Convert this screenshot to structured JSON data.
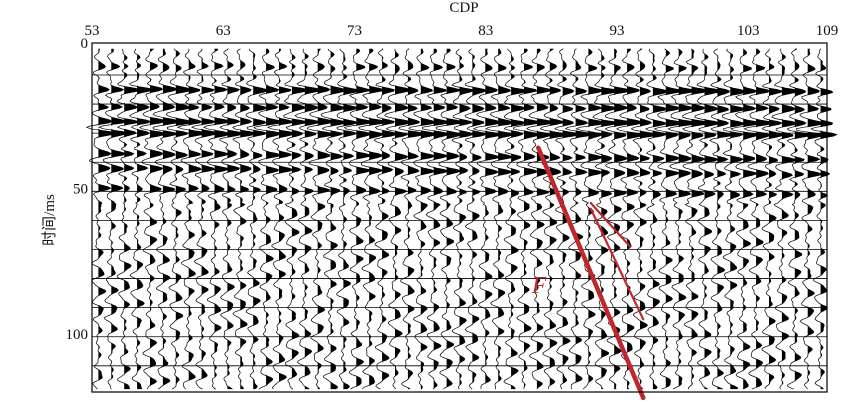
{
  "chart_data": {
    "type": "seismic-section",
    "xlabel": "CDP",
    "ylabel": "时间/ms",
    "x_ticks": [
      53,
      63,
      73,
      83,
      93,
      103,
      109
    ],
    "y_ticks": [
      0,
      50,
      100
    ],
    "xlim": [
      53,
      109
    ],
    "ylim": [
      0,
      120
    ],
    "y_inverted": true,
    "trace_count": 57,
    "time_lines_ms": [
      11,
      21,
      31,
      41,
      51,
      61,
      71,
      81,
      91,
      101,
      111
    ],
    "reflectors": [
      {
        "time_ms": 8,
        "cdp_range": [
          53,
          109
        ],
        "strength": 0.35
      },
      {
        "time_ms": 16,
        "cdp_range": [
          53,
          109
        ],
        "strength": 0.95
      },
      {
        "time_ms": 22,
        "cdp_range": [
          53,
          109
        ],
        "strength": 0.8
      },
      {
        "time_ms": 27,
        "cdp_range": [
          53,
          109
        ],
        "strength": 1.0
      },
      {
        "time_ms": 31,
        "cdp_range": [
          53,
          109
        ],
        "strength": 0.95
      },
      {
        "time_ms": 38,
        "cdp_range": [
          53,
          109
        ],
        "strength": 0.75
      },
      {
        "time_ms": 43,
        "cdp_range": [
          53,
          109
        ],
        "strength": 0.7
      },
      {
        "time_ms": 50,
        "cdp_range": [
          53,
          109
        ],
        "strength": 0.6
      }
    ],
    "faults": [
      {
        "label": "F",
        "from": {
          "cdp": 87,
          "time_ms": 36
        },
        "to": {
          "cdp": 95,
          "time_ms": 122
        },
        "label_at": {
          "cdp": 86.5,
          "time_ms": 86
        }
      },
      {
        "label": "",
        "from": {
          "cdp": 91,
          "time_ms": 55
        },
        "to": {
          "cdp": 94,
          "time_ms": 70
        }
      },
      {
        "label": "",
        "from": {
          "cdp": 91,
          "time_ms": 57
        },
        "to": {
          "cdp": 95,
          "time_ms": 95
        }
      }
    ],
    "fault_color": "#c0272d",
    "trace_color": "#000000"
  }
}
